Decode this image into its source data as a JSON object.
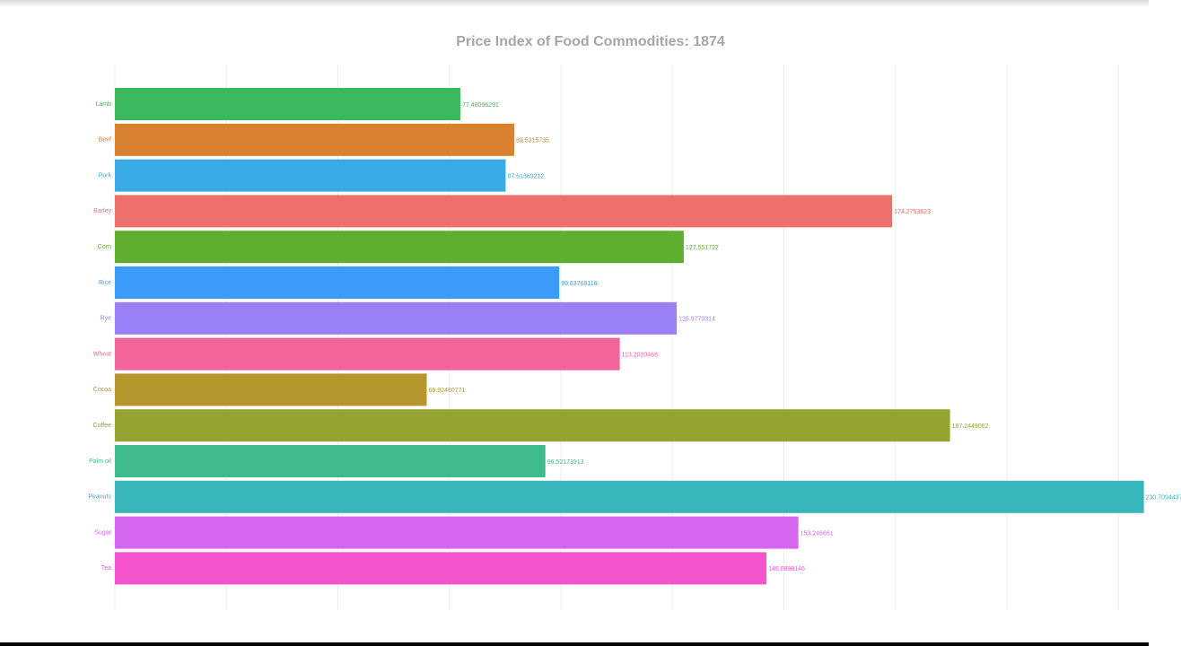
{
  "chart_data": {
    "type": "bar",
    "orientation": "horizontal",
    "title": "Price Index of Food Commodities: 1874",
    "xlabel": "",
    "ylabel": "",
    "xlim": [
      0,
      225
    ],
    "grid": true,
    "legend": "none",
    "categories": [
      "Lamb",
      "Beef",
      "Pork",
      "Barley",
      "Corn",
      "Rice",
      "Rye",
      "Wheat",
      "Cocoa",
      "Coffee",
      "Palm oil",
      "Peanuts",
      "Sugar",
      "Tea"
    ],
    "values": [
      77.48096291,
      89.5315735,
      87.61369212,
      174.2753623,
      127.551727,
      99.63768116,
      125.9770314,
      113.2020466,
      69.92480771,
      187.2449002,
      96.52173913,
      230.7094437,
      153.246661,
      146.0898146
    ],
    "value_labels": [
      "77.48096291",
      "89.5315735",
      "87.61369212",
      "174.2753623",
      "127.551727",
      "99.63768116",
      "125.9770314",
      "113.2020466",
      "69.92480771",
      "187.2449002",
      "96.52173913",
      "230.7094437",
      "153.246661",
      "146.0898146"
    ],
    "colors": [
      "#3cb95c",
      "#d9812e",
      "#3aaae6",
      "#ef706a",
      "#5fae2f",
      "#3a9bfa",
      "#9b7ff9",
      "#f4649c",
      "#b6952d",
      "#93a430",
      "#3fbb8b",
      "#36b6bb",
      "#d466ef",
      "#f455cf"
    ]
  }
}
